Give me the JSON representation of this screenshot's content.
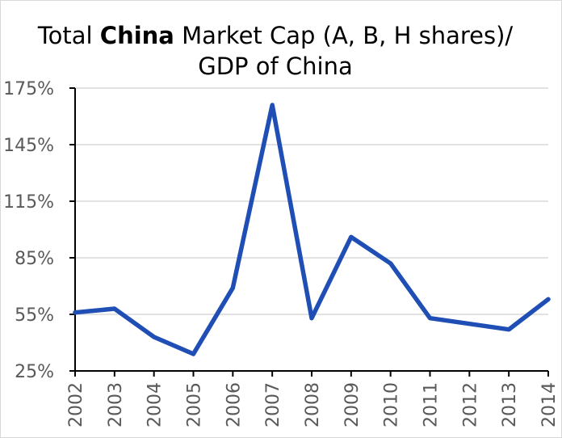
{
  "chart_data": {
    "type": "line",
    "title_prefix": "Total ",
    "title_bold": "China",
    "title_suffix": " Market Cap (A, B, H shares)/ GDP of China",
    "x": [
      "2002",
      "2003",
      "2004",
      "2005",
      "2006",
      "2007",
      "2008",
      "2009",
      "2010",
      "2011",
      "2012",
      "2013",
      "2014"
    ],
    "series": [
      {
        "values": [
          56,
          58,
          43,
          34,
          69,
          166,
          53,
          96,
          82,
          53,
          50,
          47,
          63
        ]
      }
    ],
    "y_ticks": [
      "25%",
      "55%",
      "85%",
      "115%",
      "145%",
      "175%"
    ],
    "ylim": [
      25,
      175
    ],
    "grid": true,
    "colors": {
      "line": "#1f4eb4",
      "grid": "#d9d9d9",
      "axis": "#000000"
    }
  }
}
